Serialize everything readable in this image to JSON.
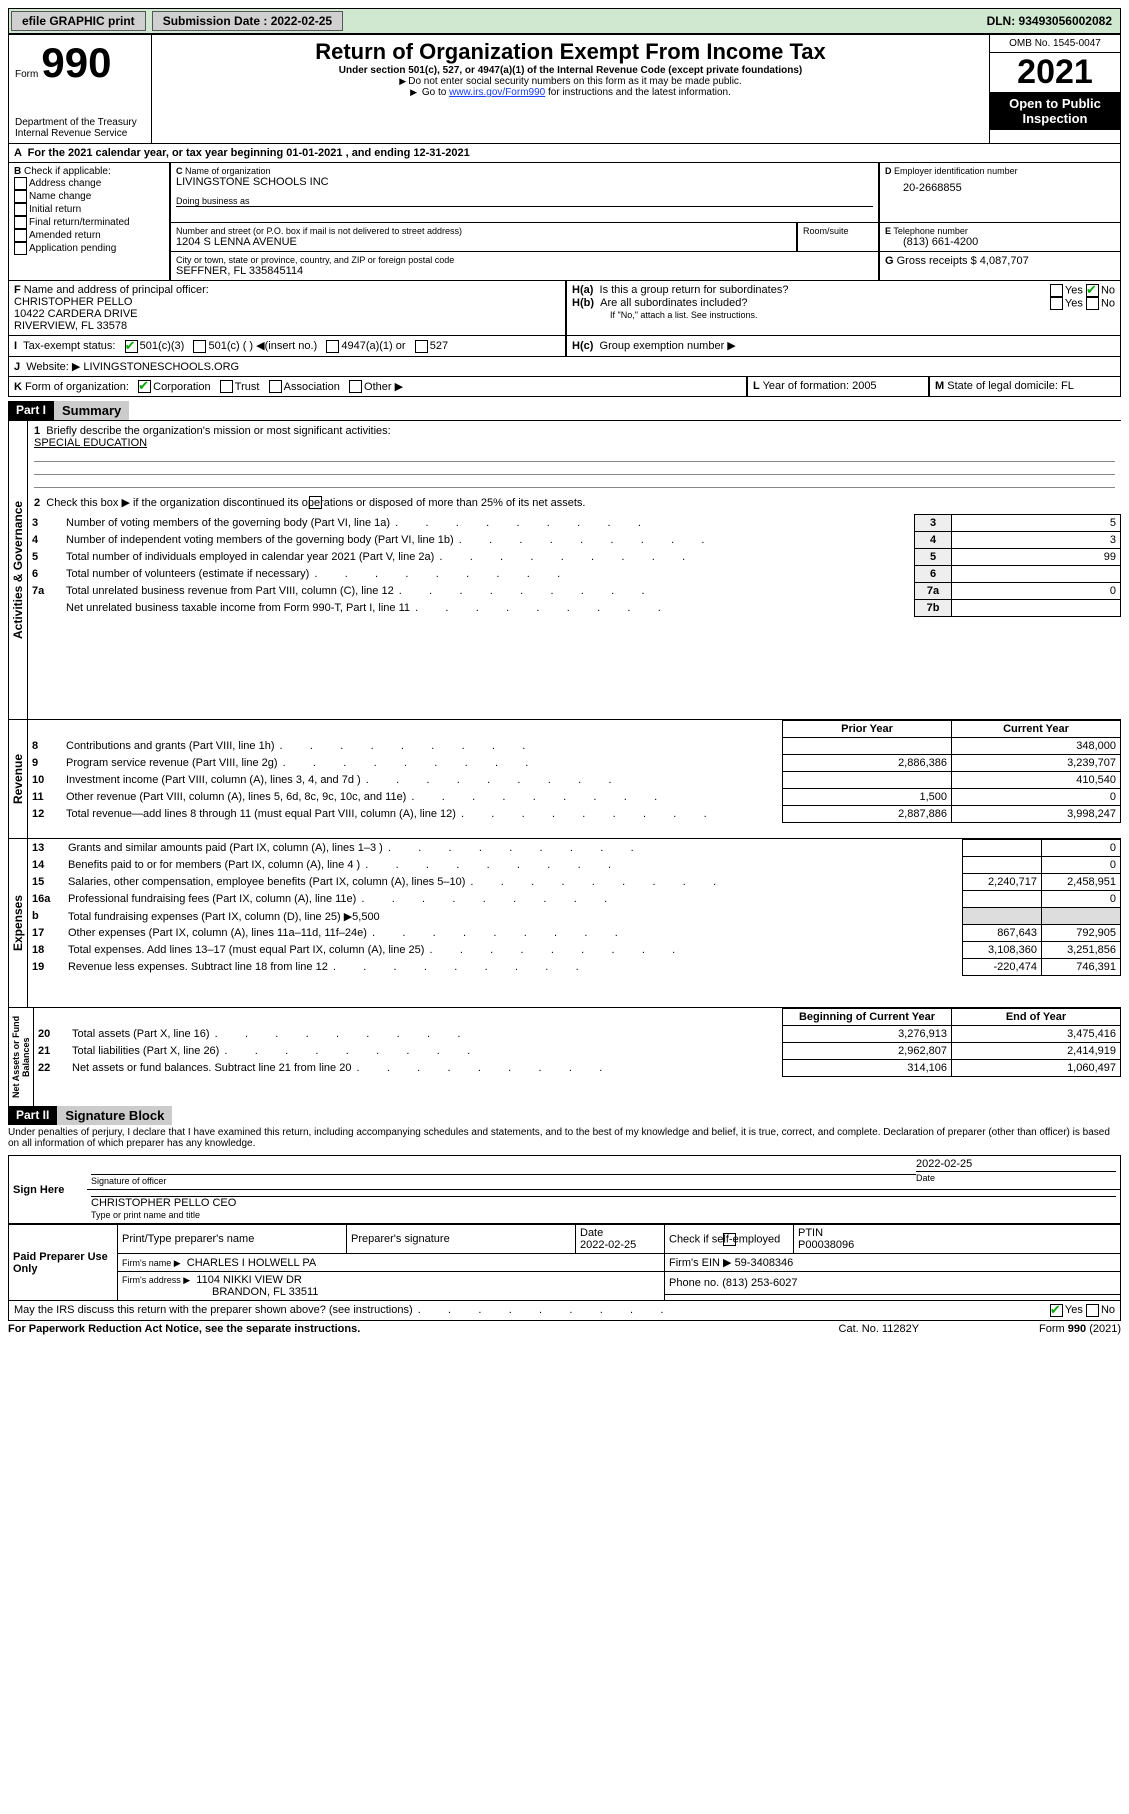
{
  "topbar": {
    "efile": "efile GRAPHIC print",
    "submission_label": "Submission Date : 2022-02-25",
    "dln": "DLN: 93493056002082"
  },
  "header": {
    "form_label": "Form",
    "form_number": "990",
    "dept": "Department of the Treasury",
    "irs": "Internal Revenue Service",
    "title": "Return of Organization Exempt From Income Tax",
    "subtitle": "Under section 501(c), 527, or 4947(a)(1) of the Internal Revenue Code (except private foundations)",
    "warn1": "Do not enter social security numbers on this form as it may be made public.",
    "warn2_pre": "Go to ",
    "warn2_link": "www.irs.gov/Form990",
    "warn2_post": " for instructions and the latest information.",
    "omb": "OMB No. 1545-0047",
    "year": "2021",
    "open": "Open to Public Inspection"
  },
  "A": {
    "line": "For the 2021 calendar year, or tax year beginning 01-01-2021   , and ending 12-31-2021"
  },
  "B": {
    "title": "Check if applicable:",
    "items": [
      "Address change",
      "Name change",
      "Initial return",
      "Final return/terminated",
      "Amended return",
      "Application pending"
    ]
  },
  "C": {
    "name_label": "Name of organization",
    "name": "LIVINGSTONE SCHOOLS INC",
    "dba_label": "Doing business as",
    "addr_label": "Number and street (or P.O. box if mail is not delivered to street address)",
    "room_label": "Room/suite",
    "addr": "1204 S LENNA AVENUE",
    "city_label": "City or town, state or province, country, and ZIP or foreign postal code",
    "city": "SEFFNER, FL  335845114"
  },
  "D": {
    "label": "Employer identification number",
    "value": "20-2668855"
  },
  "E": {
    "label": "Telephone number",
    "value": "(813) 661-4200"
  },
  "G": {
    "label": "Gross receipts $",
    "value": "4,087,707"
  },
  "F": {
    "label": "Name and address of principal officer:",
    "line1": "CHRISTOPHER PELLO",
    "line2": "10422 CARDERA DRIVE",
    "line3": "RIVERVIEW, FL  33578"
  },
  "H": {
    "a": "Is this a group return for subordinates?",
    "b": "Are all subordinates included?",
    "b_note": "If \"No,\" attach a list. See instructions.",
    "c": "Group exemption number ▶",
    "yes": "Yes",
    "no": "No"
  },
  "I": {
    "label": "Tax-exempt status:",
    "opts": [
      "501(c)(3)",
      "501(c) (  ) ◀(insert no.)",
      "4947(a)(1) or",
      "527"
    ]
  },
  "J": {
    "label": "Website: ▶",
    "value": "LIVINGSTONESCHOOLS.ORG"
  },
  "K": {
    "label": "Form of organization:",
    "opts": [
      "Corporation",
      "Trust",
      "Association",
      "Other ▶"
    ]
  },
  "L": {
    "label": "Year of formation:",
    "value": "2005"
  },
  "M": {
    "label": "State of legal domicile:",
    "value": "FL"
  },
  "part1": {
    "bar": "Part I",
    "title": "Summary",
    "q1": "Briefly describe the organization's mission or most significant activities:",
    "mission": "SPECIAL EDUCATION",
    "q2": "Check this box ▶        if the organization discontinued its operations or disposed of more than 25% of its net assets.",
    "rows_ag": [
      {
        "n": "3",
        "t": "Number of voting members of the governing body (Part VI, line 1a)",
        "r": "3",
        "v": "5"
      },
      {
        "n": "4",
        "t": "Number of independent voting members of the governing body (Part VI, line 1b)",
        "r": "4",
        "v": "3"
      },
      {
        "n": "5",
        "t": "Total number of individuals employed in calendar year 2021 (Part V, line 2a)",
        "r": "5",
        "v": "99"
      },
      {
        "n": "6",
        "t": "Total number of volunteers (estimate if necessary)",
        "r": "6",
        "v": ""
      },
      {
        "n": "7a",
        "t": "Total unrelated business revenue from Part VIII, column (C), line 12",
        "r": "7a",
        "v": "0"
      },
      {
        "n": "",
        "t": "Net unrelated business taxable income from Form 990-T, Part I, line 11",
        "r": "7b",
        "v": ""
      }
    ],
    "hdr_prior": "Prior Year",
    "hdr_curr": "Current Year",
    "rev": [
      {
        "n": "8",
        "t": "Contributions and grants (Part VIII, line 1h)",
        "p": "",
        "c": "348,000"
      },
      {
        "n": "9",
        "t": "Program service revenue (Part VIII, line 2g)",
        "p": "2,886,386",
        "c": "3,239,707"
      },
      {
        "n": "10",
        "t": "Investment income (Part VIII, column (A), lines 3, 4, and 7d )",
        "p": "",
        "c": "410,540"
      },
      {
        "n": "11",
        "t": "Other revenue (Part VIII, column (A), lines 5, 6d, 8c, 9c, 10c, and 11e)",
        "p": "1,500",
        "c": "0"
      },
      {
        "n": "12",
        "t": "Total revenue—add lines 8 through 11 (must equal Part VIII, column (A), line 12)",
        "p": "2,887,886",
        "c": "3,998,247"
      }
    ],
    "exp": [
      {
        "n": "13",
        "t": "Grants and similar amounts paid (Part IX, column (A), lines 1–3 )",
        "p": "",
        "c": "0"
      },
      {
        "n": "14",
        "t": "Benefits paid to or for members (Part IX, column (A), line 4 )",
        "p": "",
        "c": "0"
      },
      {
        "n": "15",
        "t": "Salaries, other compensation, employee benefits (Part IX, column (A), lines 5–10)",
        "p": "2,240,717",
        "c": "2,458,951"
      },
      {
        "n": "16a",
        "t": "Professional fundraising fees (Part IX, column (A), line 11e)",
        "p": "",
        "c": "0"
      },
      {
        "n": "b",
        "t": "Total fundraising expenses (Part IX, column (D), line 25) ▶5,500",
        "p": null,
        "c": null
      },
      {
        "n": "17",
        "t": "Other expenses (Part IX, column (A), lines 11a–11d, 11f–24e)",
        "p": "867,643",
        "c": "792,905"
      },
      {
        "n": "18",
        "t": "Total expenses. Add lines 13–17 (must equal Part IX, column (A), line 25)",
        "p": "3,108,360",
        "c": "3,251,856"
      },
      {
        "n": "19",
        "t": "Revenue less expenses. Subtract line 18 from line 12",
        "p": "-220,474",
        "c": "746,391"
      }
    ],
    "hdr_beg": "Beginning of Current Year",
    "hdr_end": "End of Year",
    "net": [
      {
        "n": "20",
        "t": "Total assets (Part X, line 16)",
        "p": "3,276,913",
        "c": "3,475,416"
      },
      {
        "n": "21",
        "t": "Total liabilities (Part X, line 26)",
        "p": "2,962,807",
        "c": "2,414,919"
      },
      {
        "n": "22",
        "t": "Net assets or fund balances. Subtract line 21 from line 20",
        "p": "314,106",
        "c": "1,060,497"
      }
    ],
    "vlabels": {
      "ag": "Activities & Governance",
      "rev": "Revenue",
      "exp": "Expenses",
      "net": "Net Assets or Fund Balances"
    }
  },
  "part2": {
    "bar": "Part II",
    "title": "Signature Block",
    "decl": "Under penalties of perjury, I declare that I have examined this return, including accompanying schedules and statements, and to the best of my knowledge and belief, it is true, correct, and complete. Declaration of preparer (other than officer) is based on all information of which preparer has any knowledge.",
    "sign_here": "Sign Here",
    "sig_officer": "Signature of officer",
    "date": "Date",
    "date_val": "2022-02-25",
    "officer": "CHRISTOPHER PELLO  CEO",
    "type_name": "Type or print name and title",
    "paid": "Paid Preparer Use Only",
    "prep_name_label": "Print/Type preparer's name",
    "prep_sig_label": "Preparer's signature",
    "prep_date_label": "Date",
    "prep_date": "2022-02-25",
    "check_self": "Check         if self-employed",
    "ptin_label": "PTIN",
    "ptin": "P00038096",
    "firm_name_label": "Firm's name    ▶",
    "firm_name": "CHARLES I HOLWELL PA",
    "firm_ein_label": "Firm's EIN ▶",
    "firm_ein": "59-3408346",
    "firm_addr_label": "Firm's address ▶",
    "firm_addr1": "1104 NIKKI VIEW DR",
    "firm_addr2": "BRANDON, FL  33511",
    "phone_label": "Phone no.",
    "phone": "(813) 253-6027",
    "may_irs": "May the IRS discuss this return with the preparer shown above? (see instructions)",
    "paperwork": "For Paperwork Reduction Act Notice, see the separate instructions.",
    "catno": "Cat. No. 11282Y",
    "formno": "Form 990 (2021)"
  }
}
